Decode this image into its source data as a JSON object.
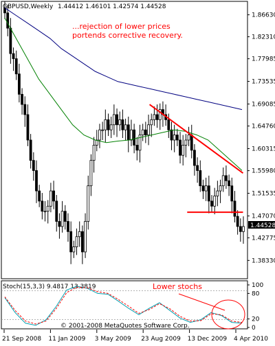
{
  "header": {
    "symbol": "GBPUSD,Weekly",
    "ohlc": "1.44412 1.46101 1.42574 1.44528"
  },
  "annotations": {
    "main_text_line1": "...rejection of lower prices",
    "main_text_line2": "portends corrective recovery.",
    "stoch_text": "Lower stochs"
  },
  "stoch_header": "Stoch(15,3,3) 9.4817 13.3819",
  "copyright": "© 2001-2008 MetaQuotes Software Corp.",
  "current_price_label": "1.44528",
  "colors": {
    "candle": "#000000",
    "ma_slow": "#000080",
    "ma_fast": "#008000",
    "trendline": "#ff0000",
    "annotation_text": "#ff0000",
    "stoch_main": "#00a0b0",
    "stoch_signal": "#ff0000",
    "price_box_bg": "#000000"
  },
  "chart_data": {
    "type": "candlestick",
    "title": "GBPUSD,Weekly",
    "ylim": [
      1.35,
      1.89
    ],
    "y_ticks": [
      "1.86630",
      "1.82310",
      "1.77985",
      "1.73535",
      "1.69085",
      "1.64760",
      "1.60315",
      "1.55980",
      "1.51535",
      "1.47070",
      "1.42775",
      "1.38330"
    ],
    "x_tick_labels": [
      "21 Sep 2008",
      "11 Jan 2009",
      "3 May 2009",
      "23 Aug 2009",
      "13 Dec 2009",
      "4 Apr 2010"
    ],
    "last_close": 1.44528,
    "ohlc_last": {
      "open": 1.44412,
      "high": 1.46101,
      "low": 1.42574,
      "close": 1.44528
    },
    "closes": [
      1.87,
      1.84,
      1.79,
      1.78,
      1.75,
      1.71,
      1.69,
      1.67,
      1.62,
      1.58,
      1.56,
      1.52,
      1.5,
      1.48,
      1.48,
      1.49,
      1.52,
      1.5,
      1.46,
      1.45,
      1.48,
      1.46,
      1.44,
      1.4,
      1.41,
      1.43,
      1.44,
      1.4,
      1.46,
      1.53,
      1.58,
      1.61,
      1.62,
      1.64,
      1.64,
      1.66,
      1.64,
      1.65,
      1.67,
      1.65,
      1.66,
      1.64,
      1.65,
      1.62,
      1.64,
      1.61,
      1.6,
      1.63,
      1.64,
      1.63,
      1.65,
      1.66,
      1.67,
      1.66,
      1.68,
      1.67,
      1.66,
      1.64,
      1.62,
      1.63,
      1.62,
      1.59,
      1.61,
      1.62,
      1.63,
      1.6,
      1.57,
      1.56,
      1.53,
      1.52,
      1.53,
      1.5,
      1.49,
      1.51,
      1.52,
      1.53,
      1.55,
      1.54,
      1.53,
      1.5,
      1.47,
      1.45,
      1.44,
      1.45
    ],
    "series": [
      {
        "name": "MA slow",
        "values": [
          1.88,
          1.865,
          1.85,
          1.835,
          1.82,
          1.8,
          1.785,
          1.77,
          1.755,
          1.745,
          1.735,
          1.73,
          1.725,
          1.72,
          1.715,
          1.71,
          1.705,
          1.7,
          1.695,
          1.69,
          1.685,
          1.68
        ]
      },
      {
        "name": "MA fast",
        "values": [
          1.86,
          1.82,
          1.78,
          1.74,
          1.71,
          1.68,
          1.65,
          1.63,
          1.62,
          1.615,
          1.618,
          1.62,
          1.625,
          1.63,
          1.635,
          1.64,
          1.637,
          1.63,
          1.62,
          1.6,
          1.58,
          1.56
        ]
      }
    ],
    "trendlines": [
      {
        "from": [
          0.605,
          1.69
        ],
        "to": [
          0.99,
          1.555
        ]
      },
      {
        "from": [
          0.76,
          1.478
        ],
        "to": [
          0.99,
          1.478
        ]
      }
    ]
  },
  "stoch_data": {
    "type": "line",
    "ylim": [
      0,
      100
    ],
    "y_ticks": [
      "100",
      "80",
      "20",
      "0"
    ],
    "main": [
      70,
      35,
      10,
      5,
      18,
      50,
      88,
      97,
      92,
      80,
      78,
      62,
      45,
      30,
      45,
      58,
      40,
      22,
      12,
      18,
      35,
      28,
      12,
      10
    ],
    "signal": [
      72,
      40,
      15,
      8,
      15,
      45,
      82,
      95,
      93,
      84,
      80,
      66,
      50,
      33,
      42,
      56,
      44,
      26,
      15,
      16,
      32,
      30,
      15,
      12
    ]
  }
}
